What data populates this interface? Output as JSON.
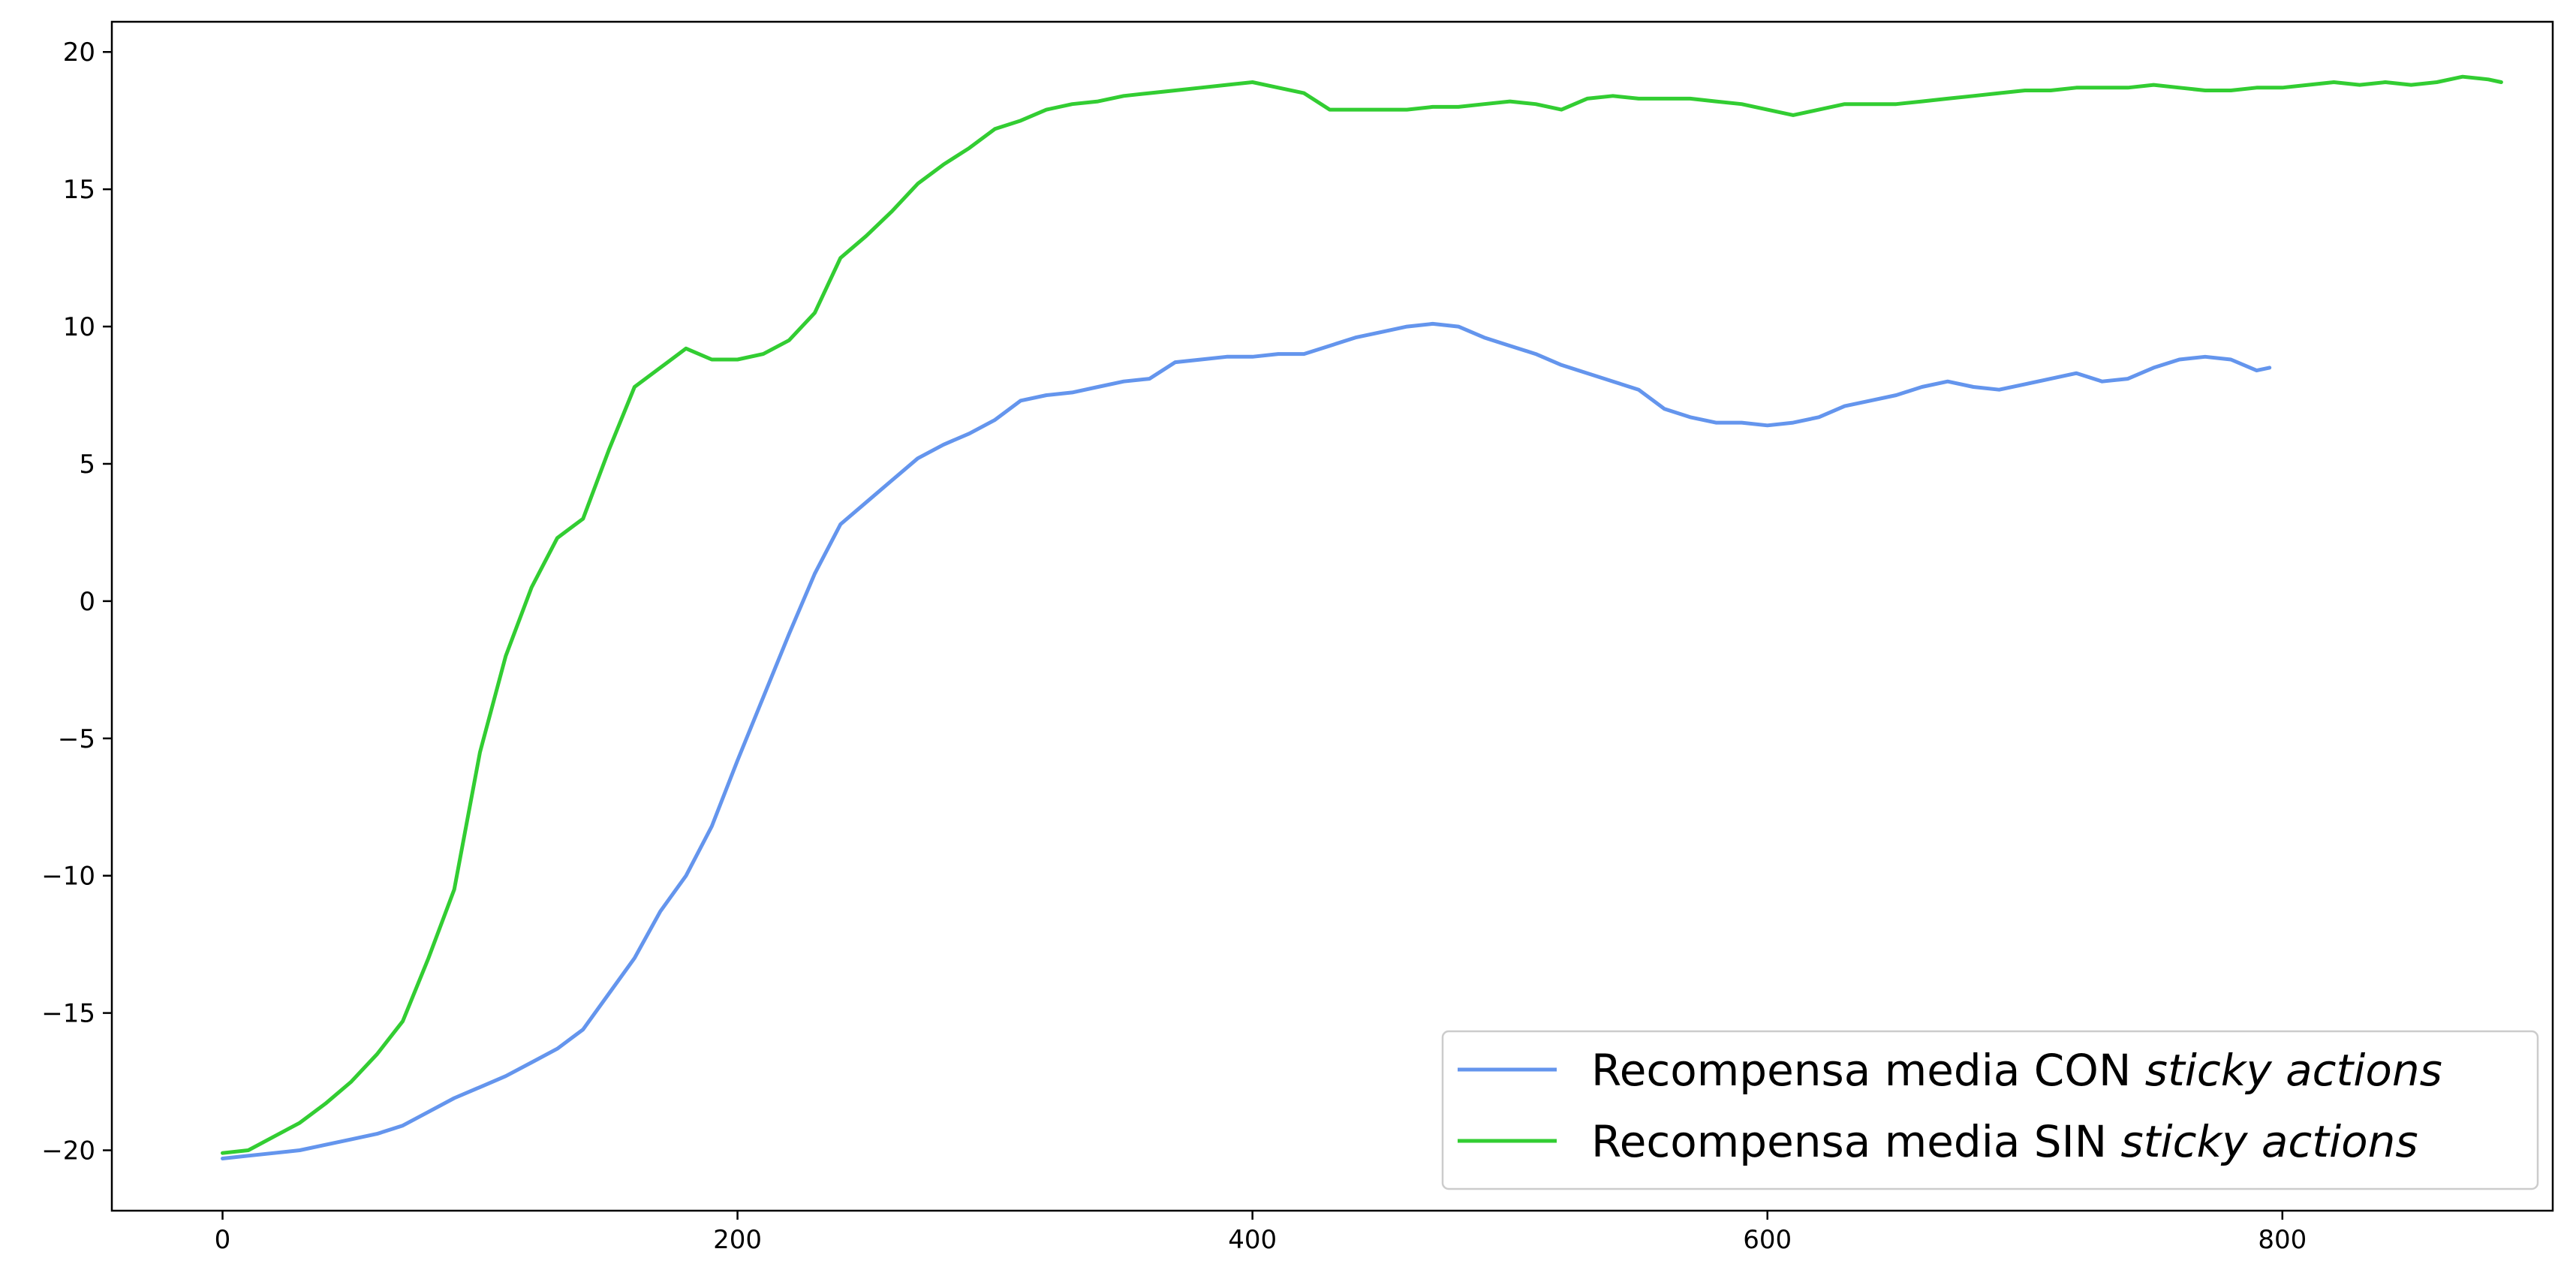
{
  "chart_data": {
    "type": "line",
    "title": "",
    "xlabel": "",
    "ylabel": "",
    "xlim": [
      -43,
      905
    ],
    "ylim": [
      -22.2,
      21.1
    ],
    "xticks": [
      0,
      200,
      400,
      600,
      800
    ],
    "yticks": [
      -20,
      -15,
      -10,
      -5,
      0,
      5,
      10,
      15,
      20
    ],
    "xtick_labels": [
      "0",
      "200",
      "400",
      "600",
      "800"
    ],
    "ytick_labels": [
      "−20",
      "−15",
      "−10",
      "−5",
      "0",
      "5",
      "10",
      "15",
      "20"
    ],
    "grid": false,
    "legend_position": "bottom-right",
    "series": [
      {
        "name_prefix": "Recompensa media CON ",
        "name_italic": "sticky actions",
        "color": "#6495ed",
        "x": [
          0,
          10,
          20,
          30,
          40,
          50,
          60,
          70,
          80,
          90,
          100,
          110,
          120,
          130,
          140,
          150,
          160,
          170,
          180,
          190,
          200,
          210,
          220,
          230,
          240,
          250,
          260,
          270,
          280,
          290,
          300,
          310,
          320,
          330,
          340,
          350,
          360,
          370,
          380,
          390,
          400,
          410,
          420,
          430,
          440,
          450,
          460,
          470,
          480,
          490,
          500,
          510,
          520,
          530,
          540,
          550,
          560,
          570,
          580,
          590,
          600,
          610,
          620,
          630,
          640,
          650,
          660,
          670,
          680,
          690,
          700,
          710,
          720,
          730,
          740,
          750,
          760,
          770,
          780,
          790,
          795
        ],
        "values": [
          -20.3,
          -20.2,
          -20.1,
          -20.0,
          -19.8,
          -19.6,
          -19.4,
          -19.1,
          -18.6,
          -18.1,
          -17.7,
          -17.3,
          -16.8,
          -16.3,
          -15.6,
          -14.3,
          -13.0,
          -11.3,
          -10.0,
          -8.2,
          -5.8,
          -3.5,
          -1.2,
          1.0,
          2.8,
          3.6,
          4.4,
          5.2,
          5.7,
          6.1,
          6.6,
          7.3,
          7.5,
          7.6,
          7.8,
          8.0,
          8.1,
          8.7,
          8.8,
          8.9,
          8.9,
          9.0,
          9.0,
          9.3,
          9.6,
          9.8,
          10.0,
          10.1,
          10.0,
          9.6,
          9.3,
          9.0,
          8.6,
          8.3,
          8.0,
          7.7,
          7.0,
          6.7,
          6.5,
          6.5,
          6.4,
          6.5,
          6.7,
          7.1,
          7.3,
          7.5,
          7.8,
          8.0,
          7.8,
          7.7,
          7.9,
          8.1,
          8.3,
          8.0,
          8.1,
          8.5,
          8.8,
          8.9,
          8.8,
          8.4,
          8.5
        ]
      },
      {
        "name_prefix": "Recompensa media SIN ",
        "name_italic": "sticky actions",
        "color": "#32cd32",
        "x": [
          0,
          10,
          20,
          30,
          40,
          50,
          60,
          70,
          80,
          90,
          100,
          110,
          120,
          130,
          140,
          150,
          160,
          170,
          180,
          190,
          200,
          210,
          220,
          230,
          240,
          250,
          260,
          270,
          280,
          290,
          300,
          310,
          320,
          330,
          340,
          350,
          360,
          370,
          380,
          390,
          400,
          410,
          420,
          430,
          440,
          450,
          460,
          470,
          480,
          490,
          500,
          510,
          520,
          530,
          540,
          550,
          560,
          570,
          580,
          590,
          600,
          610,
          620,
          630,
          640,
          650,
          660,
          670,
          680,
          690,
          700,
          710,
          720,
          730,
          740,
          750,
          760,
          770,
          780,
          790,
          800,
          810,
          820,
          830,
          840,
          850,
          860,
          870,
          880,
          885
        ],
        "values": [
          -20.1,
          -20.0,
          -19.5,
          -19.0,
          -18.3,
          -17.5,
          -16.5,
          -15.3,
          -13.0,
          -10.5,
          -5.5,
          -2.0,
          0.5,
          2.3,
          3.0,
          5.5,
          7.8,
          8.5,
          9.2,
          8.8,
          8.8,
          9.0,
          9.5,
          10.5,
          12.5,
          13.3,
          14.2,
          15.2,
          15.9,
          16.5,
          17.2,
          17.5,
          17.9,
          18.1,
          18.2,
          18.4,
          18.5,
          18.6,
          18.7,
          18.8,
          18.9,
          18.7,
          18.5,
          17.9,
          17.9,
          17.9,
          17.9,
          18.0,
          18.0,
          18.1,
          18.2,
          18.1,
          17.9,
          18.3,
          18.4,
          18.3,
          18.3,
          18.3,
          18.2,
          18.1,
          17.9,
          17.7,
          17.9,
          18.1,
          18.1,
          18.1,
          18.2,
          18.3,
          18.4,
          18.5,
          18.6,
          18.6,
          18.7,
          18.7,
          18.7,
          18.8,
          18.7,
          18.6,
          18.6,
          18.7,
          18.7,
          18.8,
          18.9,
          18.8,
          18.9,
          18.8,
          18.9,
          19.1,
          19.0,
          18.9
        ]
      }
    ]
  }
}
